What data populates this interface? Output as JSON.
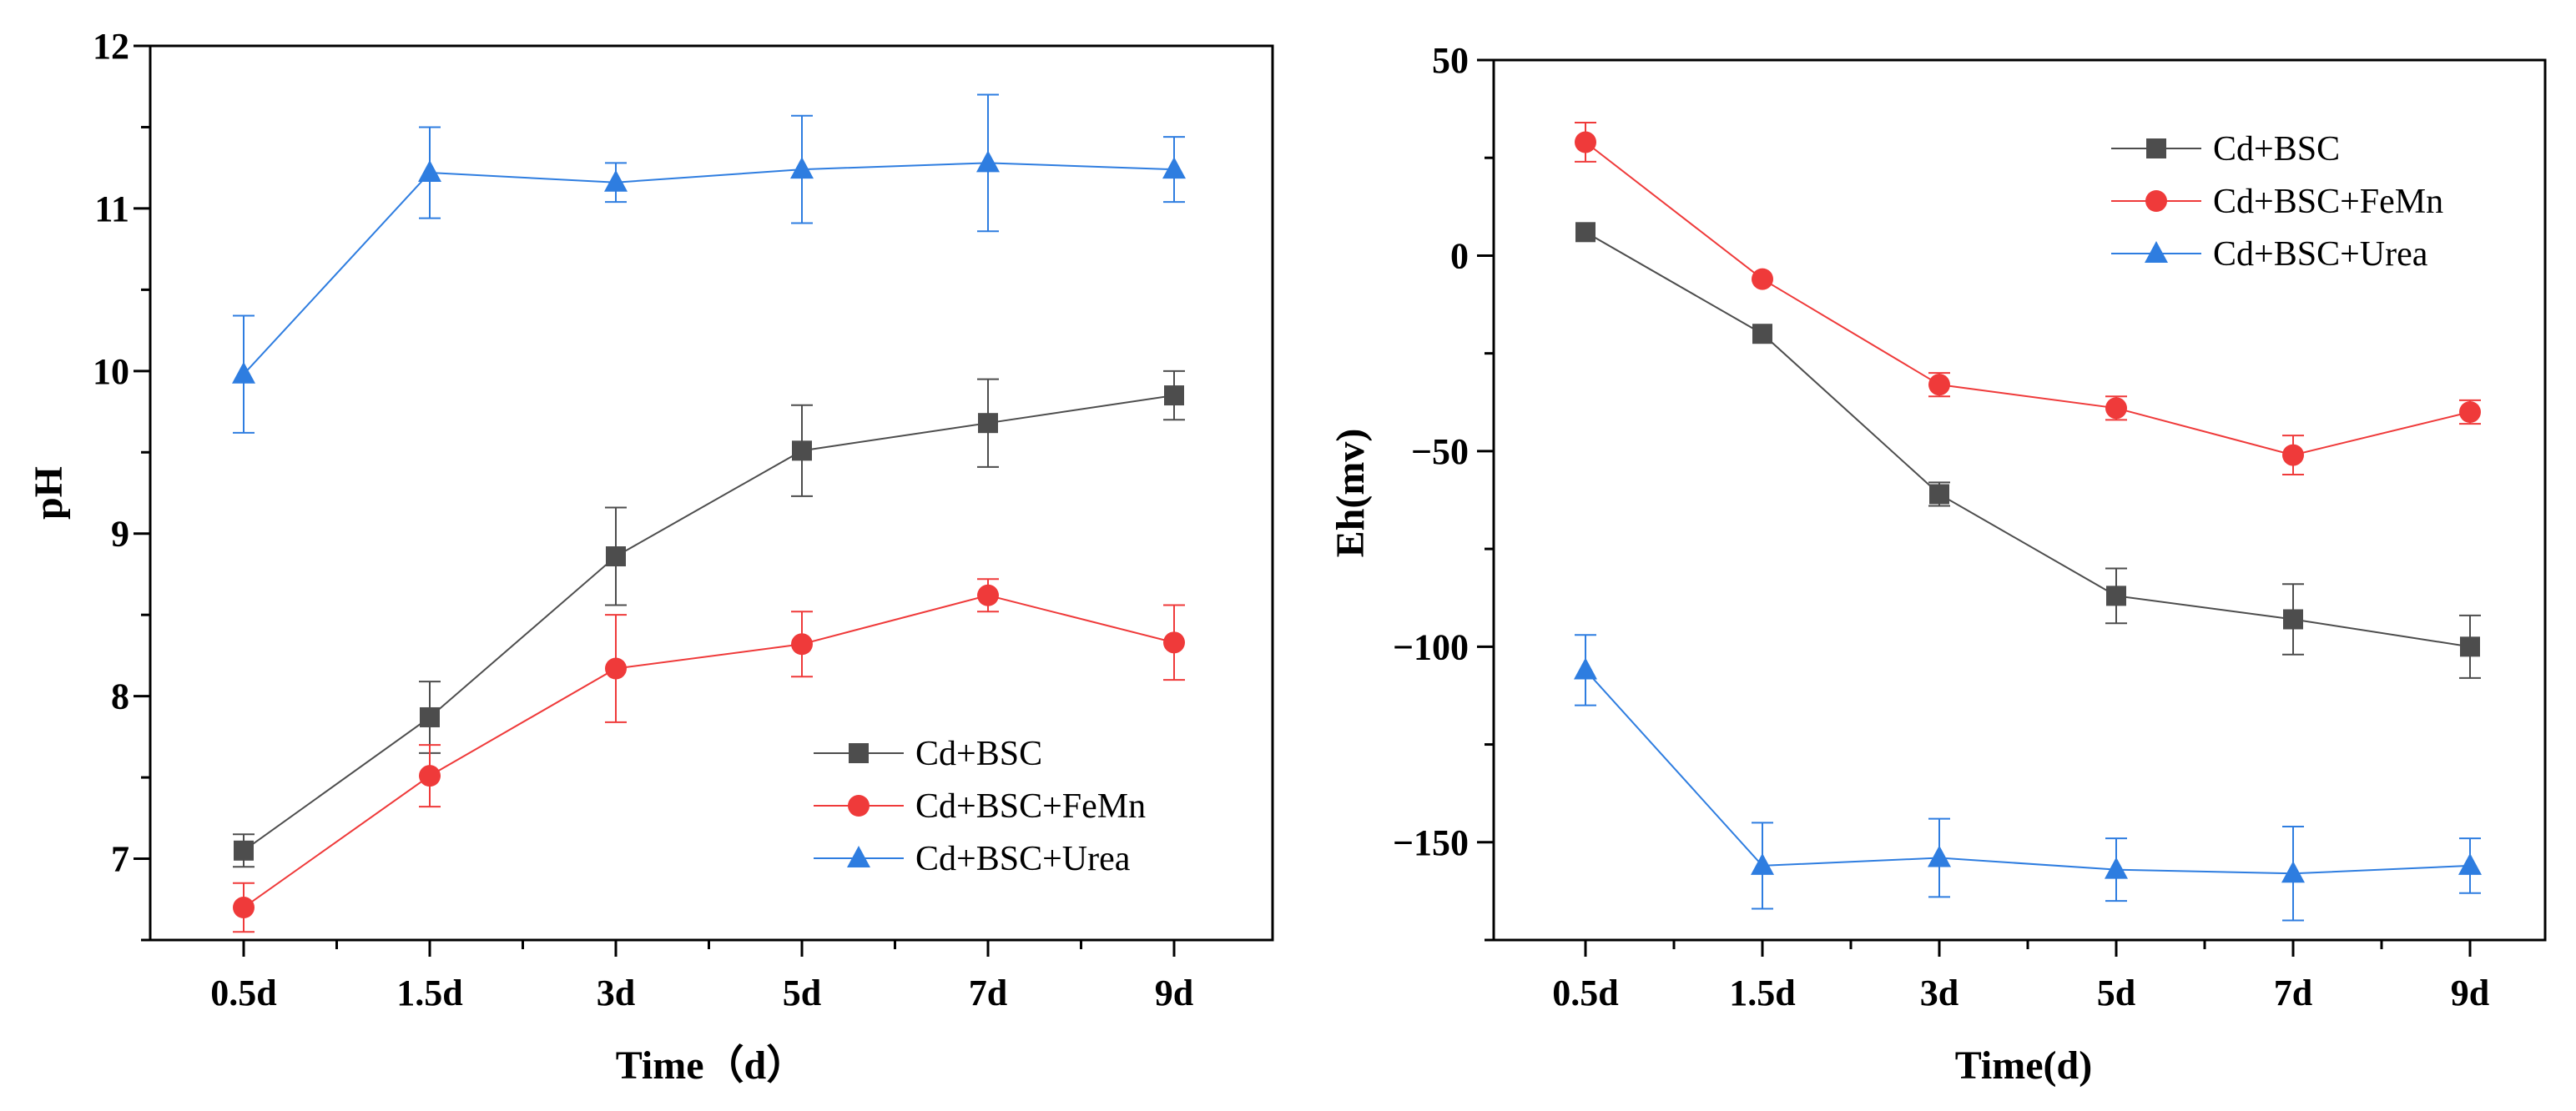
{
  "chart_data": [
    {
      "id": "ph",
      "type": "line",
      "xlabel": "Time（d）",
      "ylabel": "pH",
      "categories": [
        "0.5d",
        "1.5d",
        "3d",
        "5d",
        "7d",
        "9d"
      ],
      "ylim": [
        6.5,
        12
      ],
      "yticks": [
        7,
        8,
        9,
        10,
        11,
        12
      ],
      "minor_step": 0.5,
      "legend_position": "bottom-right",
      "series": [
        {
          "name": "Cd+BSC",
          "color": "#4d4d4d",
          "marker": "square",
          "values": [
            7.05,
            7.87,
            8.86,
            9.51,
            9.68,
            9.85
          ],
          "errors": [
            0.1,
            0.22,
            0.3,
            0.28,
            0.27,
            0.15
          ]
        },
        {
          "name": "Cd+BSC+FeMn",
          "color": "#ef3a3a",
          "marker": "circle",
          "values": [
            6.7,
            7.51,
            8.17,
            8.32,
            8.62,
            8.33
          ],
          "errors": [
            0.15,
            0.19,
            0.33,
            0.2,
            0.1,
            0.23
          ]
        },
        {
          "name": "Cd+BSC+Urea",
          "color": "#2e7de0",
          "marker": "triangle",
          "values": [
            9.98,
            11.22,
            11.16,
            11.24,
            11.28,
            11.24
          ],
          "errors": [
            0.36,
            0.28,
            0.12,
            0.33,
            0.42,
            0.2
          ]
        }
      ]
    },
    {
      "id": "eh",
      "type": "line",
      "xlabel": "Time(d)",
      "ylabel": "Eh(mv)",
      "categories": [
        "0.5d",
        "1.5d",
        "3d",
        "5d",
        "7d",
        "9d"
      ],
      "ylim": [
        -175,
        50
      ],
      "yticks": [
        -150,
        -100,
        -50,
        0,
        50
      ],
      "minor_step": 25,
      "legend_position": "top-right",
      "series": [
        {
          "name": "Cd+BSC",
          "color": "#4d4d4d",
          "marker": "square",
          "values": [
            6,
            -20,
            -61,
            -87,
            -93,
            -100
          ],
          "errors": [
            0,
            0,
            3,
            7,
            9,
            8
          ]
        },
        {
          "name": "Cd+BSC+FeMn",
          "color": "#ef3a3a",
          "marker": "circle",
          "values": [
            29,
            -6,
            -33,
            -39,
            -51,
            -40
          ],
          "errors": [
            5,
            0,
            3,
            3,
            5,
            3
          ]
        },
        {
          "name": "Cd+BSC+Urea",
          "color": "#2e7de0",
          "marker": "triangle",
          "values": [
            -106,
            -156,
            -154,
            -157,
            -158,
            -156
          ],
          "errors": [
            9,
            11,
            10,
            8,
            12,
            7
          ]
        }
      ]
    }
  ]
}
